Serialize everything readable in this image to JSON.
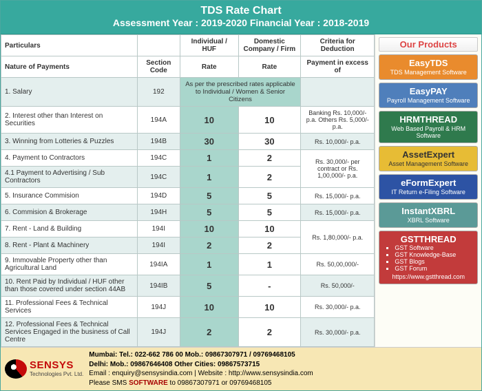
{
  "header": {
    "title": "TDS Rate Chart",
    "subtitle": "Assessment Year : 2019-2020 Financial Year : 2018-2019",
    "bg": "#37a99e"
  },
  "columns": {
    "particulars": "Particulars",
    "nature": "Nature of Payments",
    "section": "Section Code",
    "indiv": "Individual / HUF",
    "dom": "Domestic Company / Firm",
    "rate": "Rate",
    "criteria": "Criteria for Deduction",
    "excess": "Payment in excess of"
  },
  "rows": [
    {
      "no": "1.",
      "name": "Salary",
      "sec": "192",
      "rate_note": "As per the prescribed rates applicable to Individual / Women & Senior Citizens",
      "criteria": ""
    },
    {
      "no": "2.",
      "name": "Interest other than Interest on Securities",
      "sec": "194A",
      "r1": "10",
      "r2": "10",
      "criteria": "Banking Rs. 10,000/- p.a. Others Rs. 5,000/- p.a."
    },
    {
      "no": "3.",
      "name": "Winning from Lotteries & Puzzles",
      "sec": "194B",
      "r1": "30",
      "r2": "30",
      "criteria": "Rs. 10,000/- p.a."
    },
    {
      "no": "4.",
      "name": "Payment to Contractors",
      "sec": "194C",
      "r1": "1",
      "r2": "2",
      "criteria_merge_below": true,
      "criteria": "Rs. 30,000/- per contract or Rs. 1,00,000/- p.a."
    },
    {
      "no": "4.1",
      "name": "Payment to Advertising / Sub Contractors",
      "sec": "194C",
      "r1": "1",
      "r2": "2",
      "skip_criteria": true
    },
    {
      "no": "5.",
      "name": "Insurance Commision",
      "sec": "194D",
      "r1": "5",
      "r2": "5",
      "criteria": "Rs. 15,000/- p.a."
    },
    {
      "no": "6.",
      "name": "Commision & Brokerage",
      "sec": "194H",
      "r1": "5",
      "r2": "5",
      "criteria": "Rs. 15,000/- p.a."
    },
    {
      "no": "7.",
      "name": "Rent - Land & Building",
      "sec": "194I",
      "r1": "10",
      "r2": "10",
      "criteria_merge_below": true,
      "criteria": "Rs. 1,80,000/- p.a."
    },
    {
      "no": "8.",
      "name": "Rent - Plant & Machinery",
      "sec": "194I",
      "r1": "2",
      "r2": "2",
      "skip_criteria": true
    },
    {
      "no": "9.",
      "name": "Immovable Property other than Agricultural Land",
      "sec": "194IA",
      "r1": "1",
      "r2": "1",
      "criteria": "Rs. 50,00,000/-"
    },
    {
      "no": "10.",
      "name": "Rent Paid by Individual / HUF other than those covered under section 44AB",
      "sec": "194IB",
      "r1": "5",
      "r2": "-",
      "criteria": "Rs. 50,000/-"
    },
    {
      "no": "11.",
      "name": "Professional Fees & Technical Services",
      "sec": "194J",
      "r1": "10",
      "r2": "10",
      "criteria": "Rs. 30,000/- p.a."
    },
    {
      "no": "12.",
      "name": "Professional Fees & Technical Services Engaged in the business of Call Centre",
      "sec": "194J",
      "r1": "2",
      "r2": "2",
      "criteria": "Rs. 30,000/- p.a."
    }
  ],
  "sidebar": {
    "title": "Our Products",
    "products": [
      {
        "name": "EasyTDS",
        "desc": "TDS Management Software",
        "bg": "#e98b2d"
      },
      {
        "name": "EasyPAY",
        "desc": "Payroll Management Software",
        "bg": "#4f7fbb"
      },
      {
        "name": "HRMTHREAD",
        "desc": "Web Based Payroll & HRM Software",
        "bg": "#2f7a4d"
      },
      {
        "name": "AssetExpert",
        "desc": "Asset Management Software",
        "bg": "#e7bc35",
        "text": "#333"
      },
      {
        "name": "eFormExpert",
        "desc": "IT Return e-Filing Software",
        "bg": "#2d53a4"
      },
      {
        "name": "InstantXBRL",
        "desc": "XBRL Software",
        "bg": "#5b9a97"
      }
    ],
    "gst": {
      "name": "GSTTHREAD",
      "items": [
        "GST Software",
        "GST Knowledge-Base",
        "GST Blogs",
        "GST Forum"
      ],
      "url": "https://www.gstthread.com",
      "bg": "#c23b3b"
    }
  },
  "footer": {
    "brand": "SENSYS",
    "tag": "Technologies Pvt. Ltd.",
    "l1": "Mumbai: Tel.: 022-662 786 00 Mob.: 09867307971 / 09769468105",
    "l2": "Delhi: Mob.: 09867646408 Other Cities: 09867573715",
    "l3": "Email : enquiry@sensysindia.com | Website : http://www.sensysindia.com",
    "l4a": "Please SMS ",
    "l4b": "SOFTWARE",
    "l4c": " to 09867307971 or 09769468105",
    "bg": "#f7e7b4"
  }
}
